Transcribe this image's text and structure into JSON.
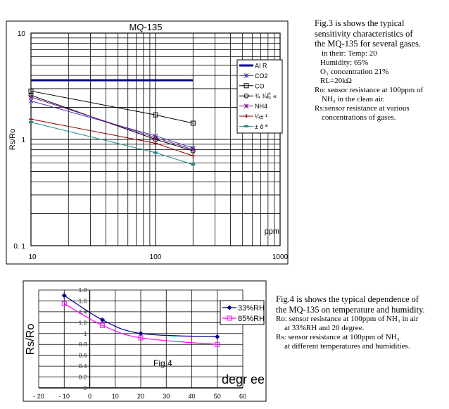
{
  "chart_data": [
    {
      "type": "line",
      "title": "MQ-135",
      "ylabel": "Rs/Ro",
      "xlabel": "ppm",
      "x_scale": "log",
      "y_scale": "log",
      "xlim": [
        10,
        1000
      ],
      "ylim": [
        0.1,
        10
      ],
      "x_tick_labels": [
        "10",
        "100",
        "1000"
      ],
      "y_tick_labels": [
        "0. 1",
        "1",
        "10"
      ],
      "grid": true,
      "legend_position": "top-right",
      "series": [
        {
          "name": "AI R",
          "color": "#00008b",
          "marker": "none",
          "x": [
            10,
            200
          ],
          "y": [
            3.6,
            3.6
          ]
        },
        {
          "name": "CO2",
          "color": "#3a3ab0",
          "marker": "x",
          "x": [
            10,
            100,
            200
          ],
          "y": [
            2.3,
            1.08,
            0.83
          ]
        },
        {
          "name": "CO",
          "color": "#000000",
          "marker": "square",
          "x": [
            10,
            100,
            200
          ],
          "y": [
            2.85,
            1.7,
            1.42
          ]
        },
        {
          "name": "¾ ¾Ê «",
          "color": "#000000",
          "marker": "circle",
          "x": [
            10,
            100,
            200
          ],
          "y": [
            2.6,
            1.0,
            0.78
          ]
        },
        {
          "name": "NH4",
          "color": "#7a1a8c",
          "marker": "x",
          "x": [
            10,
            100,
            200
          ],
          "y": [
            2.5,
            1.04,
            0.8
          ]
        },
        {
          "name": "¼± ¹",
          "color": "#8b0000",
          "marker": "plus",
          "x": [
            10,
            100,
            200
          ],
          "y": [
            1.55,
            0.92,
            0.7
          ]
        },
        {
          "name": "± ô ª",
          "color": "#1a8a8a",
          "marker": "dash",
          "x": [
            10,
            100,
            200
          ],
          "y": [
            1.45,
            0.75,
            0.58
          ]
        }
      ]
    },
    {
      "type": "line",
      "ylabel": "Rs/Ro",
      "xlabel": "degr ee",
      "annotation": "Fig.4",
      "xlim": [
        -20,
        60
      ],
      "ylim": [
        0,
        1.8
      ],
      "x_tick_labels": [
        "- 20",
        "- 10",
        "0",
        "10",
        "20",
        "30",
        "40",
        "50",
        "60"
      ],
      "y_tick_labels": [
        "0",
        "0.2",
        "0.4",
        "0.6",
        "0.8",
        "1",
        "1.2",
        "1.4",
        "1.6",
        "1.8"
      ],
      "grid": true,
      "legend_position": "top-right",
      "series": [
        {
          "name": "33%RH",
          "color": "#00008b",
          "marker": "diamond",
          "x": [
            -10,
            5,
            20,
            50
          ],
          "y": [
            1.7,
            1.25,
            1.0,
            0.94
          ]
        },
        {
          "name": "85%RH",
          "color": "#ff00ff",
          "marker": "square",
          "x": [
            -10,
            5,
            20,
            50
          ],
          "y": [
            1.55,
            1.15,
            0.92,
            0.8
          ]
        }
      ]
    }
  ],
  "captions": {
    "fig3": {
      "line1": "Fig.3 is shows the typical",
      "line2": "sensitivity characteristics of",
      "line3": "the MQ-135 for several gases.",
      "cond1": "in their: Temp: 20",
      "cond2": "Humidity: 65%",
      "cond3": "O₂ concentration 21%",
      "cond4": "RL=20kΩ",
      "ro1": "Ro: sensor resistance at 100ppm of",
      "ro2": "NH₃ in the clean air.",
      "rs1": "Rs:sensor resistance at various",
      "rs2": "concentrations of gases."
    },
    "fig4": {
      "line1": "Fig.4 is shows the typical dependence of",
      "line2": "the MQ-135 on temperature and humidity.",
      "ro1": "Ro: sensor resistance at 100ppm of NH₃ in air",
      "ro2": "at 33%RH and 20 degree.",
      "rs1": "Rs: sensor resistance at 100ppm of NH₃",
      "rs2": "at different temperatures and humidities."
    }
  }
}
